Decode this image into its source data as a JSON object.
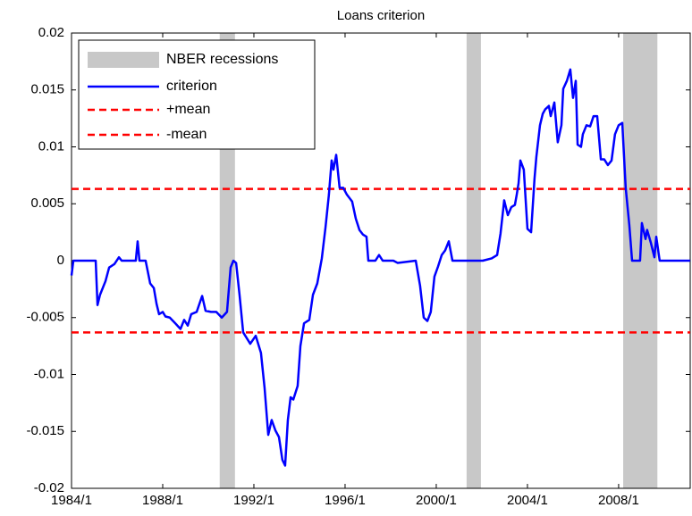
{
  "chart_data": {
    "type": "line",
    "title": "Loans criterion",
    "x": [
      1984.0,
      1984.08,
      1984.94,
      1985.06,
      1985.14,
      1985.25,
      1985.49,
      1985.65,
      1985.88,
      1986.08,
      1986.2,
      1986.82,
      1986.9,
      1986.98,
      1987.25,
      1987.45,
      1987.61,
      1987.73,
      1987.84,
      1988.0,
      1988.12,
      1988.31,
      1988.55,
      1988.78,
      1988.94,
      1989.1,
      1989.25,
      1989.49,
      1989.73,
      1989.88,
      1990.12,
      1990.35,
      1990.59,
      1990.82,
      1990.98,
      1991.1,
      1991.22,
      1991.37,
      1991.53,
      1991.84,
      1992.08,
      1992.31,
      1992.47,
      1992.63,
      1992.78,
      1992.94,
      1993.1,
      1993.25,
      1993.37,
      1993.49,
      1993.61,
      1993.73,
      1993.92,
      1994.04,
      1994.2,
      1994.43,
      1994.59,
      1994.78,
      1994.98,
      1995.14,
      1995.29,
      1995.41,
      1995.49,
      1995.61,
      1995.76,
      1995.92,
      1996.08,
      1996.31,
      1996.47,
      1996.63,
      1996.78,
      1996.94,
      1997.02,
      1997.33,
      1997.49,
      1997.65,
      1998.12,
      1998.31,
      1999.1,
      1999.29,
      1999.45,
      1999.61,
      1999.76,
      1999.92,
      2000.08,
      2000.24,
      2000.39,
      2000.55,
      2000.71,
      2001.25,
      2002.04,
      2002.43,
      2002.67,
      2002.82,
      2002.98,
      2003.14,
      2003.29,
      2003.45,
      2003.53,
      2003.61,
      2003.69,
      2003.84,
      2004.0,
      2004.16,
      2004.31,
      2004.39,
      2004.55,
      2004.67,
      2004.78,
      2004.94,
      2005.02,
      2005.18,
      2005.33,
      2005.49,
      2005.57,
      2005.73,
      2005.88,
      2006.0,
      2006.12,
      2006.2,
      2006.35,
      2006.43,
      2006.59,
      2006.75,
      2006.9,
      2007.06,
      2007.22,
      2007.37,
      2007.53,
      2007.69,
      2007.84,
      2008.0,
      2008.16,
      2008.31,
      2008.47,
      2008.59,
      2008.94,
      2009.02,
      2009.18,
      2009.25,
      2009.41,
      2009.57,
      2009.65,
      2009.8,
      2011.14
    ],
    "series": [
      {
        "name": "criterion",
        "color": "#0000ff",
        "values": [
          -0.0013,
          0,
          0,
          0,
          -0.0039,
          -0.003,
          -0.0018,
          -0.0006,
          -0.0003,
          0.0003,
          0,
          0,
          0.0017,
          0,
          0,
          -0.002,
          -0.0024,
          -0.0038,
          -0.0047,
          -0.0045,
          -0.0049,
          -0.005,
          -0.0055,
          -0.006,
          -0.0052,
          -0.0057,
          -0.0047,
          -0.0045,
          -0.0031,
          -0.0044,
          -0.0045,
          -0.0045,
          -0.005,
          -0.0045,
          -0.0006,
          0,
          -0.0002,
          -0.003,
          -0.0063,
          -0.0073,
          -0.0066,
          -0.0081,
          -0.0112,
          -0.0153,
          -0.014,
          -0.0149,
          -0.0155,
          -0.0175,
          -0.018,
          -0.014,
          -0.012,
          -0.0122,
          -0.011,
          -0.0075,
          -0.0055,
          -0.0052,
          -0.003,
          -0.002,
          0.0002,
          0.0029,
          0.0058,
          0.0088,
          0.008,
          0.0093,
          0.0064,
          0.0064,
          0.0058,
          0.0052,
          0.0037,
          0.0027,
          0.0023,
          0.0021,
          0,
          0,
          0.0005,
          0,
          0,
          -0.0002,
          0,
          -0.0022,
          -0.005,
          -0.0053,
          -0.0045,
          -0.0014,
          -0.0005,
          0.0005,
          0.0009,
          0.0017,
          0,
          0,
          0,
          0.0002,
          0.0005,
          0.0024,
          0.0053,
          0.004,
          0.0047,
          0.0049,
          0.0058,
          0.0068,
          0.0088,
          0.008,
          0.0028,
          0.0025,
          0.0072,
          0.0091,
          0.0119,
          0.0129,
          0.0133,
          0.0136,
          0.0127,
          0.0139,
          0.0104,
          0.0119,
          0.0151,
          0.0158,
          0.0168,
          0.0143,
          0.0158,
          0.0102,
          0.01,
          0.0111,
          0.0119,
          0.0118,
          0.0127,
          0.0127,
          0.0089,
          0.0089,
          0.0084,
          0.0088,
          0.0111,
          0.0119,
          0.0121,
          0.0064,
          0.0031,
          0,
          0,
          0.0033,
          0.0019,
          0.0027,
          0.0016,
          0.0003,
          0.0021,
          0,
          0
        ]
      }
    ],
    "hlines": [
      {
        "name": "+mean",
        "color": "#ff0000",
        "value": 0.0063
      },
      {
        "name": "-mean",
        "color": "#ff0000",
        "value": -0.0063
      }
    ],
    "recessions": {
      "name": "NBER recessions",
      "color": "#c8c8c8",
      "spans": [
        [
          1990.5,
          1991.17
        ],
        [
          2001.33,
          2001.96
        ],
        [
          2008.2,
          2009.7
        ]
      ]
    },
    "xlim": [
      1984,
      2011.14
    ],
    "ylim": [
      -0.02,
      0.02
    ],
    "xticks": [
      {
        "value": 1984,
        "label": "1984/1"
      },
      {
        "value": 1988,
        "label": "1988/1"
      },
      {
        "value": 1992,
        "label": "1992/1"
      },
      {
        "value": 1996,
        "label": "1996/1"
      },
      {
        "value": 2000,
        "label": "2000/1"
      },
      {
        "value": 2004,
        "label": "2004/1"
      },
      {
        "value": 2008,
        "label": "2008/1"
      }
    ],
    "yticks": [
      -0.02,
      -0.015,
      -0.01,
      -0.005,
      0,
      0.005,
      0.01,
      0.015,
      0.02
    ],
    "legend": "upper left"
  }
}
